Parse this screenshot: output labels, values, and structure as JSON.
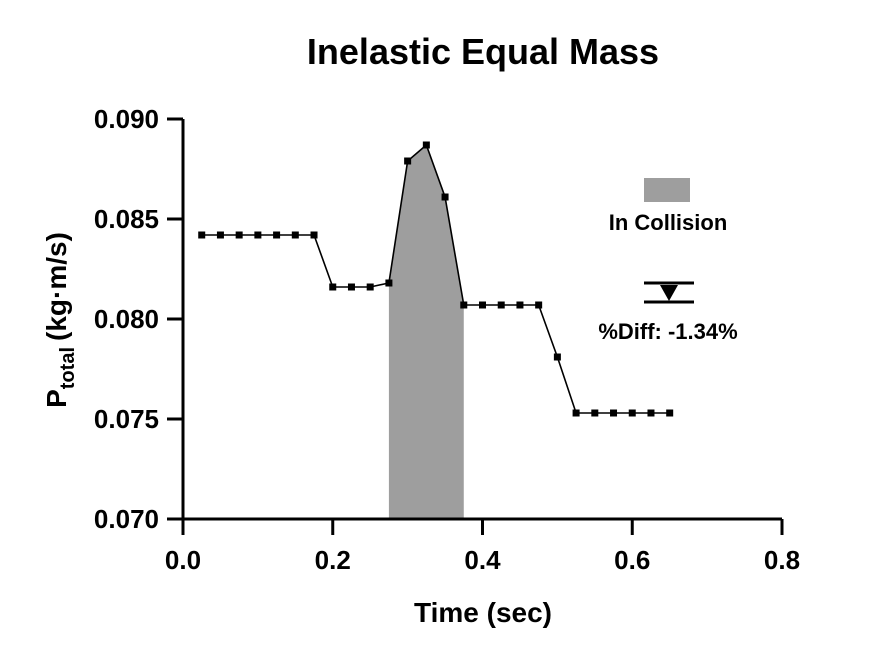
{
  "chart_data": {
    "type": "line",
    "title": "Inelastic Equal Mass",
    "xlabel": "Time (sec)",
    "ylabel_main": "P",
    "ylabel_sub": "total",
    "ylabel_unit": "(kg·m/s)",
    "xlim": [
      0.0,
      0.8
    ],
    "ylim": [
      0.07,
      0.09
    ],
    "xticks": [
      0.0,
      0.2,
      0.4,
      0.6,
      0.8
    ],
    "xtick_labels": [
      "0.0",
      "0.2",
      "0.4",
      "0.6",
      "0.8"
    ],
    "yticks": [
      0.07,
      0.075,
      0.08,
      0.085,
      0.09
    ],
    "ytick_labels": [
      "0.070",
      "0.075",
      "0.080",
      "0.085",
      "0.090"
    ],
    "grid": false,
    "series": [
      {
        "color": "#000000",
        "x": [
          0.025,
          0.05,
          0.075,
          0.1,
          0.125,
          0.15,
          0.175,
          0.2,
          0.225,
          0.25,
          0.275,
          0.3,
          0.325,
          0.35,
          0.375,
          0.4,
          0.425,
          0.45,
          0.475,
          0.5,
          0.525,
          0.55,
          0.575,
          0.6,
          0.625,
          0.65
        ],
        "y": [
          0.0842,
          0.0842,
          0.0842,
          0.0842,
          0.0842,
          0.0842,
          0.0842,
          0.0816,
          0.0816,
          0.0816,
          0.0818,
          0.0879,
          0.0887,
          0.0861,
          0.0807,
          0.0807,
          0.0807,
          0.0807,
          0.0807,
          0.0781,
          0.0753,
          0.0753,
          0.0753,
          0.0753,
          0.0753,
          0.0753
        ]
      }
    ],
    "collision_region": {
      "label": "In Collision",
      "x_start": 0.275,
      "x_end": 0.375,
      "color": "#9e9e9e"
    },
    "annotation": {
      "text": "%Diff: -1.34%"
    }
  }
}
